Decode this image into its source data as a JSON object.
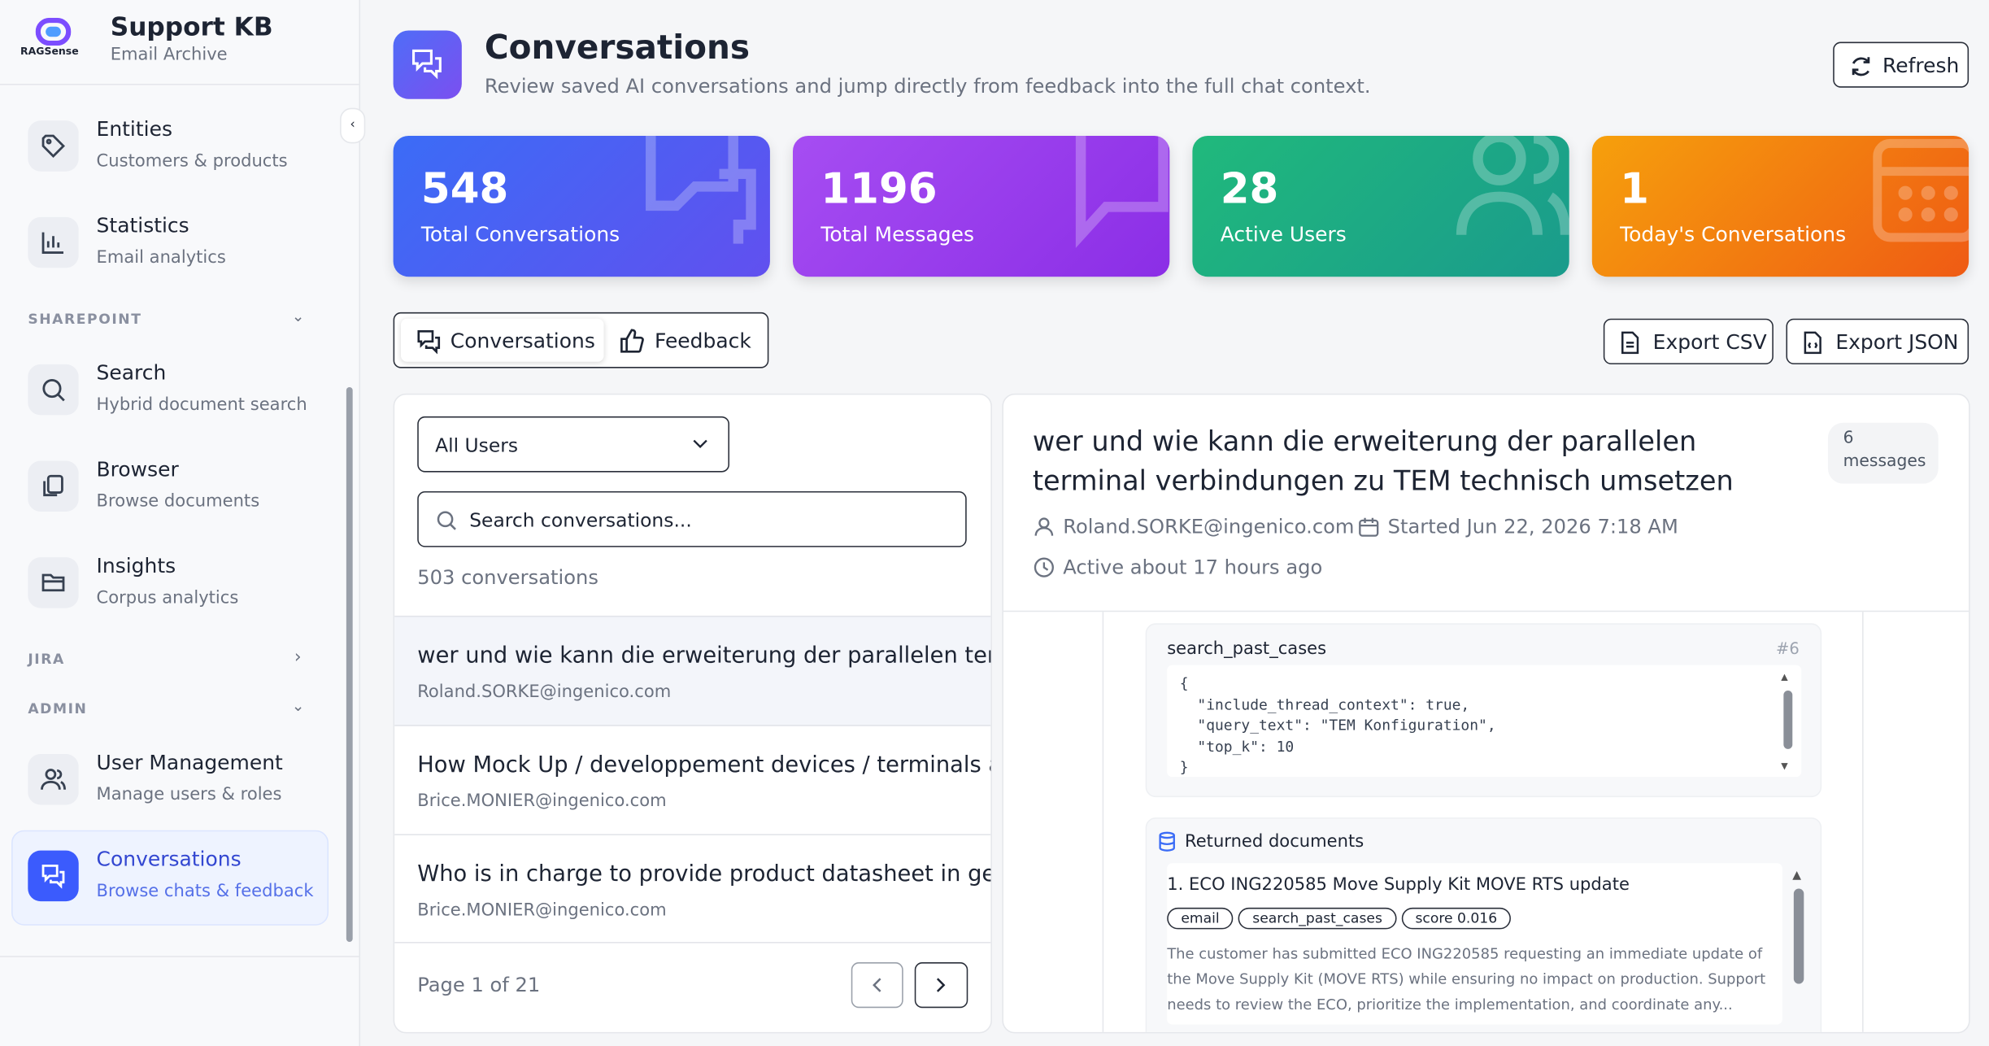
{
  "sidebar": {
    "brand": "RAGSense",
    "app_title": "Support KB",
    "app_subtitle": "Email Archive",
    "nav_top": [
      {
        "label": "Entities",
        "desc": "Customers & products"
      },
      {
        "label": "Statistics",
        "desc": "Email analytics"
      }
    ],
    "sections": [
      {
        "title": "SHAREPOINT",
        "items": [
          {
            "label": "Search",
            "desc": "Hybrid document search"
          },
          {
            "label": "Browser",
            "desc": "Browse documents"
          },
          {
            "label": "Insights",
            "desc": "Corpus analytics"
          }
        ]
      },
      {
        "title": "JIRA",
        "items": []
      },
      {
        "title": "ADMIN",
        "items": [
          {
            "label": "User Management",
            "desc": "Manage users & roles"
          },
          {
            "label": "Conversations",
            "desc": "Browse chats & feedback"
          }
        ]
      }
    ]
  },
  "header": {
    "title": "Conversations",
    "subtitle": "Review saved AI conversations and jump directly from feedback into the full chat context.",
    "refresh": "Refresh"
  },
  "stats": [
    {
      "value": "548",
      "label": "Total Conversations"
    },
    {
      "value": "1196",
      "label": "Total Messages"
    },
    {
      "value": "28",
      "label": "Active Users"
    },
    {
      "value": "1",
      "label": "Today's Conversations"
    }
  ],
  "tabs": [
    "Conversations",
    "Feedback"
  ],
  "exports": [
    "Export CSV",
    "Export JSON"
  ],
  "list": {
    "filter": "All Users",
    "search_placeholder": "Search conversations...",
    "count": "503 conversations",
    "items": [
      {
        "title": "wer und wie kann die erweiterung der parallelen termi",
        "user": "Roland.SORKE@ingenico.com"
      },
      {
        "title": "How Mock Up / developpement devices / terminals ar",
        "user": "Brice.MONIER@ingenico.com"
      },
      {
        "title": "Who is in charge to provide product datasheet in gerr",
        "user": "Brice.MONIER@ingenico.com"
      }
    ],
    "pagination": "Page 1 of 21"
  },
  "detail": {
    "title": "wer und wie kann die erweiterung der parallelen terminal verbindungen zu TEM technisch umsetzen ?...",
    "message_count": "6",
    "message_label": "messages",
    "user": "Roland.SORKE@ingenico.com",
    "started": "Started Jun 22, 2026 7:18 AM",
    "active": "Active about 17 hours ago",
    "tool": {
      "name": "search_past_cases",
      "index": "#6",
      "code": [
        "{",
        "  \"include_thread_context\": true,",
        "  \"query_text\": \"TEM Konfiguration\",",
        "  \"top_k\": 10",
        "}"
      ]
    },
    "documents": {
      "heading": "Returned documents",
      "items": [
        {
          "title": "1. ECO ING220585 Move Supply Kit MOVE RTS update",
          "tags": [
            "email",
            "search_past_cases",
            "score 0.016"
          ],
          "text": "The customer has submitted ECO ING220585 requesting an immediate update of the Move Supply Kit (MOVE RTS) while ensuring no impact on production. Support needs to review the ECO, prioritize the implementation, and coordinate any..."
        }
      ]
    }
  }
}
